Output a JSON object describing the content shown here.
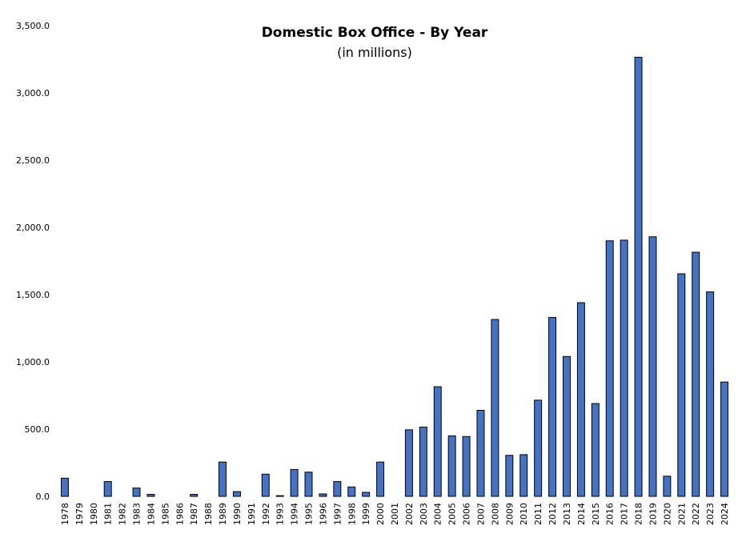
{
  "chart_data": {
    "type": "bar",
    "title": "Domestic Box Office - By Year",
    "subtitle": "(in millions)",
    "xlabel": "",
    "ylabel": "",
    "ylim": [
      0,
      3500
    ],
    "yticks": [
      "0.0",
      "500.0",
      "1,000.0",
      "1,500.0",
      "2,000.0",
      "2,500.0",
      "3,000.0",
      "3,500.0"
    ],
    "ytick_values": [
      0,
      500,
      1000,
      1500,
      2000,
      2500,
      3000,
      3500
    ],
    "grid": false,
    "legend": "none",
    "bar_color": "#4472C4",
    "bar_edge": "#000000",
    "categories": [
      "1978",
      "1979",
      "1980",
      "1981",
      "1982",
      "1983",
      "1984",
      "1985",
      "1986",
      "1987",
      "1988",
      "1989",
      "1990",
      "1991",
      "1992",
      "1993",
      "1994",
      "1995",
      "1996",
      "1997",
      "1998",
      "1999",
      "2000",
      "2001",
      "2002",
      "2003",
      "2004",
      "2005",
      "2006",
      "2007",
      "2008",
      "2009",
      "2010",
      "2011",
      "2012",
      "2013",
      "2014",
      "2015",
      "2016",
      "2017",
      "2018",
      "2019",
      "2020",
      "2021",
      "2022",
      "2023",
      "2024"
    ],
    "values": [
      135,
      0,
      0,
      110,
      0,
      62,
      15,
      0,
      0,
      15,
      0,
      255,
      35,
      0,
      165,
      5,
      200,
      180,
      18,
      110,
      70,
      30,
      255,
      0,
      495,
      515,
      815,
      450,
      445,
      640,
      1315,
      305,
      310,
      715,
      1330,
      1040,
      1440,
      690,
      1900,
      1905,
      3265,
      1930,
      150,
      1655,
      1815,
      1520,
      850
    ]
  }
}
